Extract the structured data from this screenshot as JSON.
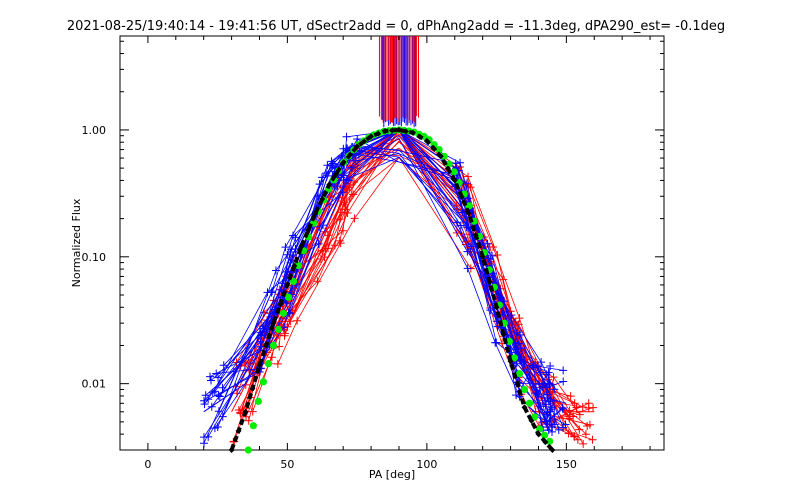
{
  "chart_data": {
    "type": "line",
    "title": "2021-08-25/19:40:14 - 19:41:56 UT, dSectr2add = 0, dPhAng2add = -11.3deg, dPA290_est= -0.1deg",
    "xlabel": "PA [deg]",
    "ylabel": "Normalized Flux",
    "xlim": [
      -10,
      185
    ],
    "ylim": [
      0.003,
      5.5
    ],
    "yscale": "log",
    "x_ticks": [
      "0",
      "50",
      "100",
      "150"
    ],
    "y_ticks": [
      "0.01",
      "0.10",
      "1.00"
    ],
    "x_tick_values": [
      0,
      50,
      100,
      150
    ],
    "y_tick_values": [
      0.01,
      0.1,
      1.0
    ],
    "peak": {
      "x": 90,
      "y": 1.0
    },
    "series": [
      {
        "color": "#ff0000",
        "style": "thin lines with + markers",
        "x": [
          30,
          48,
          70,
          88,
          90,
          92,
          110,
          130,
          140,
          150,
          160
        ],
        "y": [
          0.006,
          0.035,
          0.28,
          0.95,
          1.0,
          0.95,
          0.4,
          0.03,
          0.008,
          0.006,
          0.006
        ]
      },
      {
        "color": "#0000ff",
        "style": "thin lines with + markers",
        "x": [
          20,
          35,
          48,
          68,
          88,
          90,
          92,
          110,
          130,
          140,
          150
        ],
        "y": [
          0.006,
          0.01,
          0.05,
          0.5,
          0.98,
          1.0,
          0.98,
          0.35,
          0.02,
          0.008,
          0.007
        ]
      },
      {
        "color": "#00ee00",
        "style": "filled circles",
        "x": [
          36,
          40,
          45,
          50,
          55,
          60,
          65,
          70,
          75,
          80,
          85,
          90,
          95,
          100,
          105,
          110,
          115,
          120,
          125,
          130,
          135,
          140,
          145
        ],
        "y": [
          0.003,
          0.008,
          0.02,
          0.045,
          0.1,
          0.2,
          0.35,
          0.55,
          0.75,
          0.9,
          0.98,
          1.0,
          0.97,
          0.87,
          0.68,
          0.46,
          0.26,
          0.12,
          0.05,
          0.02,
          0.009,
          0.0045,
          0.0033
        ]
      },
      {
        "color": "#000000",
        "style": "dashed thick line with diamonds",
        "x": [
          30,
          35,
          40,
          45,
          50,
          55,
          60,
          65,
          70,
          75,
          80,
          85,
          90,
          95,
          100,
          105,
          110,
          115,
          120,
          125,
          130,
          135,
          140,
          145
        ],
        "y": [
          0.003,
          0.006,
          0.014,
          0.03,
          0.06,
          0.12,
          0.22,
          0.37,
          0.55,
          0.74,
          0.89,
          0.98,
          1.0,
          0.95,
          0.82,
          0.62,
          0.4,
          0.22,
          0.1,
          0.04,
          0.015,
          0.0065,
          0.004,
          0.003
        ]
      }
    ],
    "spikes": [
      {
        "color": "#0000ff",
        "x": [
          84,
          96
        ],
        "y_top": 5.5,
        "y_bottom": 1.2
      },
      {
        "color": "#ff0000",
        "x": [
          83,
          97
        ],
        "y_top": 5.5,
        "y_bottom": 1.3
      }
    ]
  }
}
